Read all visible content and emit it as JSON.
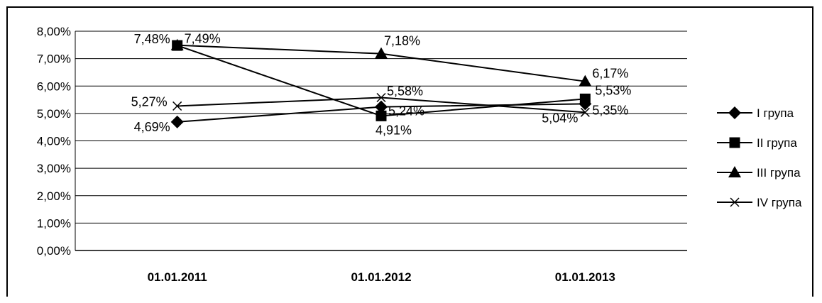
{
  "chart_data": {
    "type": "line",
    "categories": [
      "01.01.2011",
      "01.01.2012",
      "01.01.2013"
    ],
    "ylim": [
      0,
      8
    ],
    "yticks": [
      "0,00%",
      "1,00%",
      "2,00%",
      "3,00%",
      "4,00%",
      "5,00%",
      "6,00%",
      "7,00%",
      "8,00%"
    ],
    "grid": true,
    "legend_position": "right",
    "series": [
      {
        "name": "I група",
        "marker": "diamond",
        "values": [
          4.69,
          5.24,
          5.35
        ],
        "labels": [
          "4,69%",
          "5,24%",
          "5,35%"
        ]
      },
      {
        "name": "II група",
        "marker": "square",
        "values": [
          7.48,
          4.91,
          5.53
        ],
        "labels": [
          "7,48%",
          "4,91%",
          "5,53%"
        ]
      },
      {
        "name": "III група",
        "marker": "triangle",
        "values": [
          7.49,
          7.18,
          6.17
        ],
        "labels": [
          "7,49%",
          "7,18%",
          "6,17%"
        ]
      },
      {
        "name": "IV група",
        "marker": "x",
        "values": [
          5.27,
          5.58,
          5.04
        ],
        "labels": [
          "5,27%",
          "5,58%",
          "5,04%"
        ]
      }
    ]
  }
}
